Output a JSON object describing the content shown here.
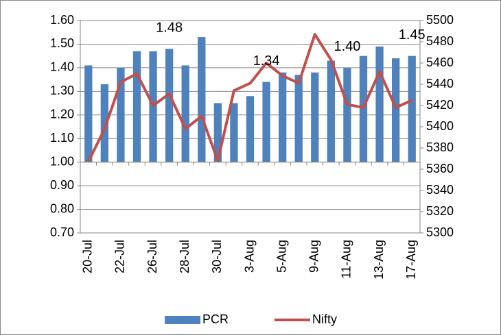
{
  "chart_data": {
    "type": "bar-line",
    "categories": [
      "20-Jul",
      null,
      "22-Jul",
      null,
      "26-Jul",
      null,
      "28-Jul",
      null,
      "30-Jul",
      null,
      "3-Aug",
      null,
      "5-Aug",
      null,
      "9-Aug",
      null,
      "11-Aug",
      null,
      "13-Aug",
      null,
      "17-Aug"
    ],
    "series": [
      {
        "name": "PCR",
        "type": "bar",
        "axis": "y",
        "color": "#4f81bd",
        "values": [
          1.41,
          1.33,
          1.4,
          1.47,
          1.47,
          1.48,
          1.41,
          1.53,
          1.25,
          1.25,
          1.28,
          1.34,
          1.38,
          1.37,
          1.38,
          1.43,
          1.4,
          1.45,
          1.49,
          1.44,
          1.45
        ],
        "value_labels": [
          null,
          null,
          null,
          null,
          null,
          "1.48",
          null,
          null,
          null,
          null,
          null,
          "1.34",
          null,
          null,
          null,
          null,
          "1.40",
          null,
          null,
          null,
          "1.45"
        ]
      },
      {
        "name": "Nifty",
        "type": "line",
        "axis": "y2",
        "color": "#c0504d",
        "values": [
          5367,
          5398,
          5442,
          5450,
          5420,
          5431,
          5398,
          5410,
          5368,
          5434,
          5441,
          5460,
          5448,
          5441,
          5487,
          5463,
          5421,
          5418,
          5452,
          5418,
          5425
        ]
      }
    ],
    "ylim": [
      0.7,
      1.6
    ],
    "yticks": [
      {
        "value": 0.7,
        "label": "0.70"
      },
      {
        "value": 0.8,
        "label": "0.80"
      },
      {
        "value": 0.9,
        "label": "0.90"
      },
      {
        "value": 1.0,
        "label": "1.00"
      },
      {
        "value": 1.1,
        "label": "1.10"
      },
      {
        "value": 1.2,
        "label": "1.20"
      },
      {
        "value": 1.3,
        "label": "1.30"
      },
      {
        "value": 1.4,
        "label": "1.40"
      },
      {
        "value": 1.5,
        "label": "1.50"
      },
      {
        "value": 1.6,
        "label": "1.60"
      }
    ],
    "y2lim": [
      5300,
      5500
    ],
    "y2ticks": [
      5300,
      5320,
      5340,
      5360,
      5380,
      5400,
      5420,
      5440,
      5460,
      5480,
      5500
    ],
    "x_axis_crosses": 1.0,
    "grid": true,
    "legend": "bottom"
  }
}
